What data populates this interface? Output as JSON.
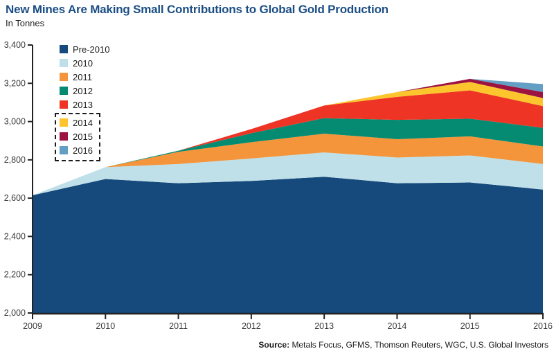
{
  "header": {
    "title": "New Mines Are Making Small Contributions to Global Gold Production",
    "subtitle": "In Tonnes"
  },
  "legend": {
    "items": [
      {
        "label": "Pre-2010",
        "color": "#164A7C",
        "highlighted": false
      },
      {
        "label": "2010",
        "color": "#BFE0E8",
        "highlighted": false
      },
      {
        "label": "2011",
        "color": "#F4953C",
        "highlighted": false
      },
      {
        "label": "2012",
        "color": "#048B72",
        "highlighted": false
      },
      {
        "label": "2013",
        "color": "#EE3425",
        "highlighted": false
      },
      {
        "label": "2014",
        "color": "#FDC52D",
        "highlighted": true
      },
      {
        "label": "2015",
        "color": "#9C1240",
        "highlighted": true
      },
      {
        "label": "2016",
        "color": "#639EC4",
        "highlighted": true
      }
    ]
  },
  "chart_data": {
    "type": "area",
    "stacked": true,
    "title": "New Mines Are Making Small Contributions to Global Gold Production",
    "ylabel": "In Tonnes",
    "xlabel": "",
    "grid": false,
    "legend_position": "top-left",
    "categories": [
      "2009",
      "2010",
      "2011",
      "2012",
      "2013",
      "2014",
      "2015",
      "2016"
    ],
    "series": [
      {
        "name": "Pre-2010",
        "color": "#164A7C",
        "values": [
          2615,
          2700,
          2678,
          2690,
          2712,
          2678,
          2682,
          2645
        ]
      },
      {
        "name": "2010",
        "color": "#BFE0E8",
        "values": [
          0,
          62,
          100,
          117,
          127,
          134,
          141,
          133
        ]
      },
      {
        "name": "2011",
        "color": "#F4953C",
        "values": [
          0,
          0,
          64,
          85,
          98,
          96,
          100,
          92
        ]
      },
      {
        "name": "2012",
        "color": "#048B72",
        "values": [
          0,
          0,
          6,
          47,
          81,
          101,
          92,
          97
        ]
      },
      {
        "name": "2013",
        "color": "#EE3425",
        "values": [
          0,
          0,
          0,
          22,
          66,
          120,
          148,
          114
        ]
      },
      {
        "name": "2014",
        "color": "#FDC52D",
        "values": [
          0,
          0,
          0,
          0,
          0,
          25,
          44,
          42
        ]
      },
      {
        "name": "2015",
        "color": "#9C1240",
        "values": [
          0,
          0,
          0,
          0,
          0,
          0,
          16,
          31
        ]
      },
      {
        "name": "2016",
        "color": "#639EC4",
        "values": [
          0,
          0,
          0,
          0,
          0,
          0,
          0,
          42
        ]
      }
    ],
    "stacked_totals": [
      2615,
      2762,
      2848,
      2961,
      3084,
      3154,
      3223,
      3196
    ],
    "ylim": [
      2000,
      3400
    ],
    "y_tick_step": 200,
    "y_tick_labels": [
      "2,000",
      "2,200",
      "2,400",
      "2,600",
      "2,800",
      "3,000",
      "3,200",
      "3,400"
    ]
  },
  "source": {
    "label": "Source:",
    "text": "Metals Focus, GFMS, Thomson Reuters, WGC, U.S. Global Investors"
  }
}
